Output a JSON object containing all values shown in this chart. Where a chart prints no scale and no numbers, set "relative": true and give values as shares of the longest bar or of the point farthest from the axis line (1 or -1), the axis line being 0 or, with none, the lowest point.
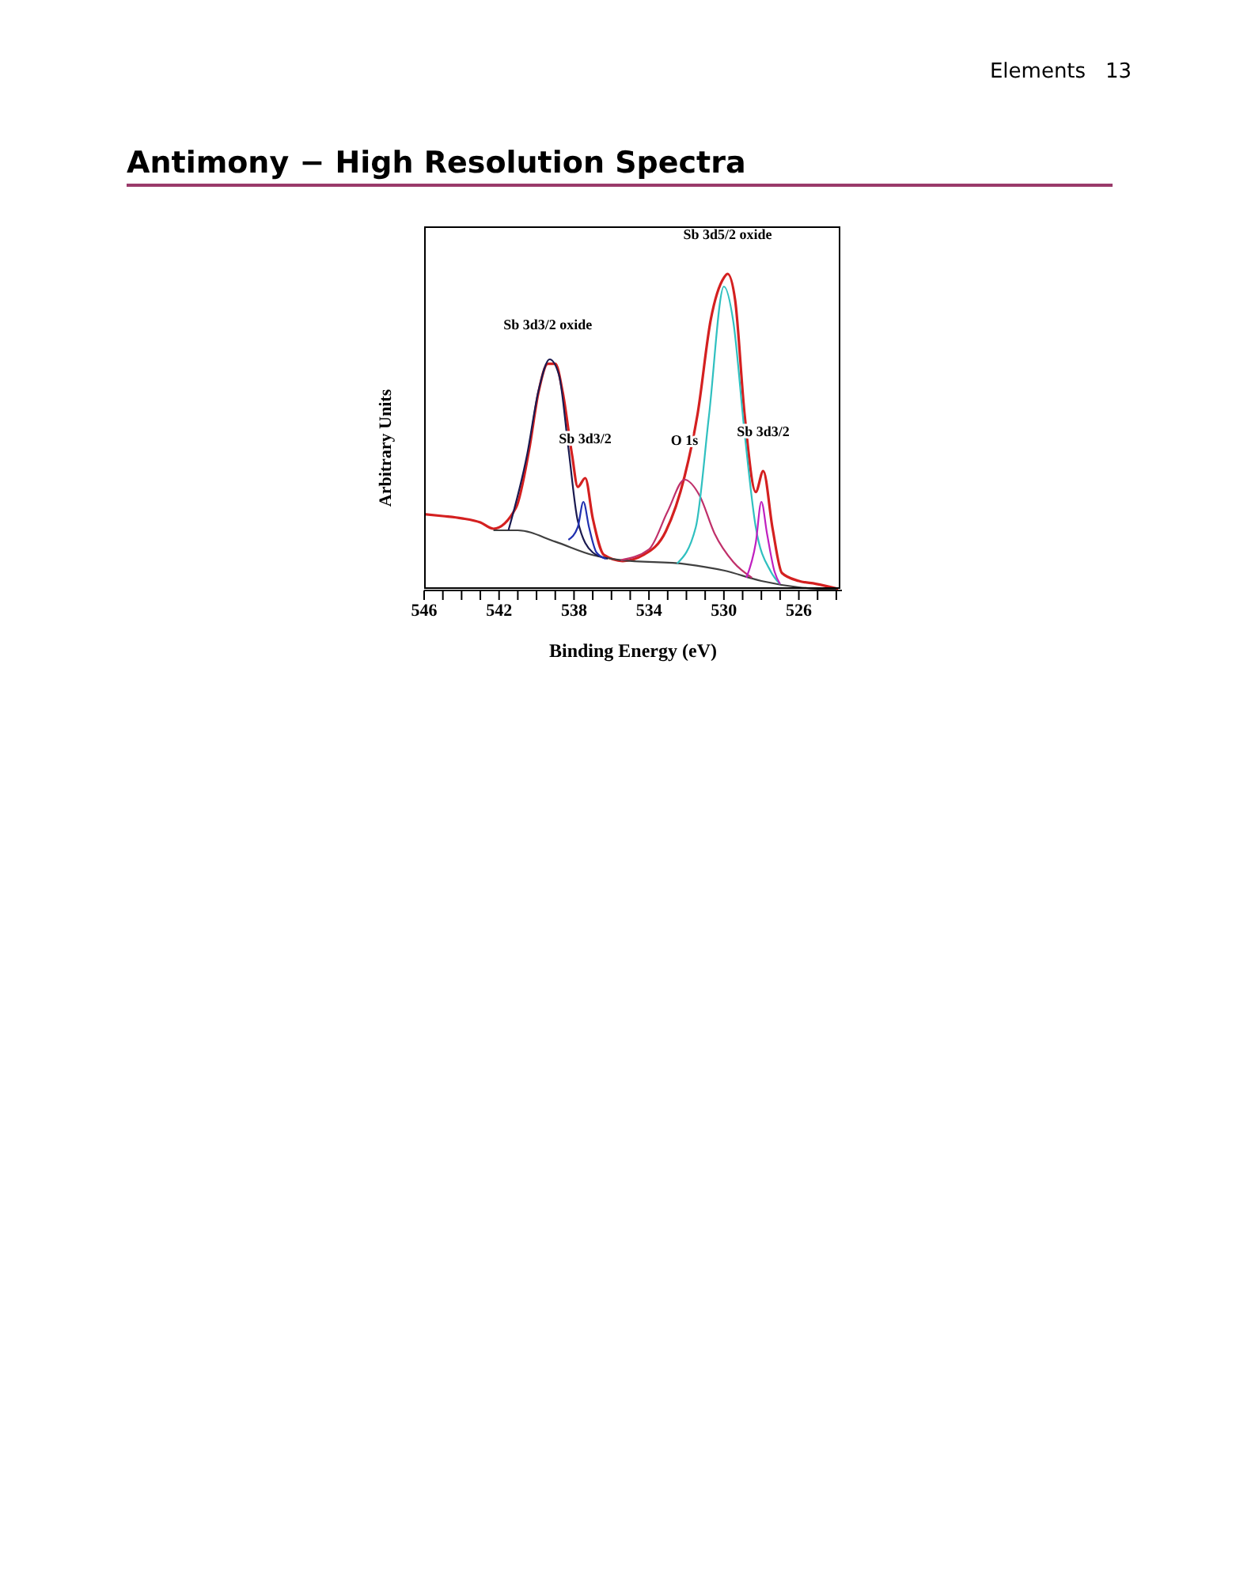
{
  "chart_data": {
    "type": "line",
    "title": "Antimony − High Resolution Spectra",
    "xlabel": "Binding Energy (eV)",
    "ylabel": "Arbitrary Units",
    "relative": true,
    "xlim": [
      546,
      523.7
    ],
    "xticks": [
      546,
      {
        "value": 545,
        "label": null
      },
      {
        "value": 544,
        "label": null
      },
      {
        "value": 543,
        "label": null
      },
      542,
      {
        "value": 541,
        "label": null
      },
      {
        "value": 540,
        "label": null
      },
      {
        "value": 539,
        "label": null
      },
      538,
      {
        "value": 537,
        "label": null
      },
      {
        "value": 536,
        "label": null
      },
      {
        "value": 535,
        "label": null
      },
      534,
      {
        "value": 533,
        "label": null
      },
      {
        "value": 532,
        "label": null
      },
      {
        "value": 531,
        "label": null
      },
      530,
      {
        "value": 529,
        "label": null
      },
      {
        "value": 528,
        "label": null
      },
      {
        "value": 527,
        "label": null
      },
      526,
      {
        "value": 525,
        "label": null
      },
      {
        "value": 524,
        "label": null
      }
    ],
    "grid": false,
    "legend": false,
    "marker": "none",
    "line_style": "solid",
    "series": [
      {
        "color": "#d42020",
        "x": [
          546,
          545,
          544,
          543,
          542.3,
          541.1,
          540.4,
          539.9,
          539.4,
          539.0,
          538.6,
          538.1,
          537.8,
          537.4,
          537.0,
          536.4,
          535.4,
          534.3,
          533.1,
          532.1,
          531.4,
          530.7,
          530.0,
          529.8,
          529.4,
          528.9,
          528.3,
          527.9,
          527.4,
          526.9,
          526,
          525.1,
          523.9
        ],
        "values": [
          0.241,
          0.235,
          0.228,
          0.215,
          0.195,
          0.261,
          0.443,
          0.625,
          0.716,
          0.716,
          0.625,
          0.426,
          0.327,
          0.355,
          0.228,
          0.112,
          0.093,
          0.112,
          0.187,
          0.36,
          0.559,
          0.856,
          0.988,
          1.0,
          0.917,
          0.559,
          0.311,
          0.377,
          0.195,
          0.055,
          0.03,
          0.021,
          0.005
        ]
      },
      {
        "color": "#404040",
        "x": [
          542.3,
          541,
          539,
          537,
          535.5,
          532,
          530,
          528,
          526,
          524
        ],
        "values": [
          0.19,
          0.19,
          0.154,
          0.112,
          0.096,
          0.083,
          0.063,
          0.03,
          0.01,
          0.003
        ]
      },
      {
        "color": "#1a1a50",
        "x": [
          541.5,
          540.5,
          539.9,
          539.3,
          538.8,
          538.3,
          537.8,
          537.0,
          536.2
        ],
        "values": [
          0.19,
          0.43,
          0.63,
          0.73,
          0.68,
          0.45,
          0.22,
          0.12,
          0.1
        ]
      },
      {
        "color": "#2030b0",
        "x": [
          538.3,
          537.8,
          537.5,
          537.2,
          536.8,
          536.3
        ],
        "values": [
          0.16,
          0.2,
          0.28,
          0.2,
          0.12,
          0.1
        ]
      },
      {
        "color": "#c0306a",
        "x": [
          535.5,
          534,
          533,
          532.1,
          531.3,
          530.5,
          529.5,
          528.5
        ],
        "values": [
          0.096,
          0.13,
          0.25,
          0.35,
          0.3,
          0.18,
          0.09,
          0.04
        ]
      },
      {
        "color": "#30c0c0",
        "x": [
          532.5,
          531.5,
          530.8,
          530.0,
          529.5,
          528.9,
          528.3,
          527.5,
          527
        ],
        "values": [
          0.085,
          0.2,
          0.55,
          0.96,
          0.85,
          0.5,
          0.2,
          0.06,
          0.02
        ]
      },
      {
        "color": "#c020c0",
        "x": [
          528.8,
          528.3,
          528.0,
          527.7,
          527.3,
          527
        ],
        "values": [
          0.04,
          0.15,
          0.28,
          0.18,
          0.06,
          0.02
        ]
      }
    ],
    "annotations": [
      "Elements   13",
      {
        "text": "Sb 3d3/2 oxide",
        "x": 539.4,
        "y": 0.716
      },
      {
        "text": "Sb 3d3/2",
        "x": 537.4,
        "y": 0.355
      },
      {
        "text": "O 1s",
        "x": 532.1,
        "y": 0.35
      },
      {
        "text": "Sb 3d5/2 oxide",
        "x": 529.8,
        "y": 1.0
      },
      {
        "text": "Sb 3d3/2",
        "x": 527.9,
        "y": 0.377
      }
    ]
  }
}
